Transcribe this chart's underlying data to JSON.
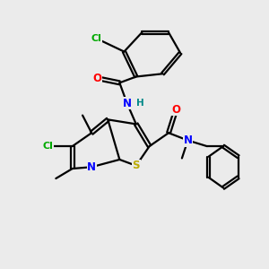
{
  "bg_color": "#ebebeb",
  "atom_colors": {
    "Cl": "#00aa00",
    "N": "#0000ff",
    "O": "#ff0000",
    "S": "#bbaa00",
    "C": "#000000",
    "H": "#008888"
  }
}
